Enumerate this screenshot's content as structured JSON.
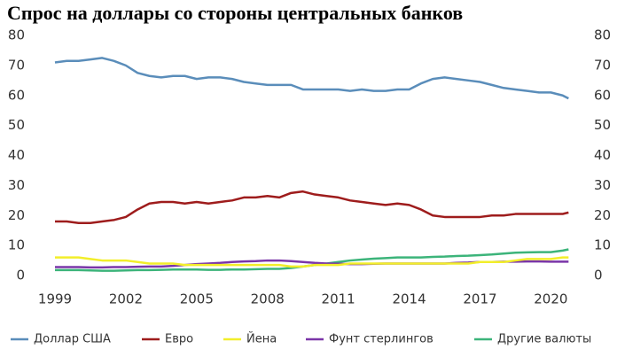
{
  "chart_data": {
    "type": "line",
    "title": "Спрос на доллары со стороны центральных банков",
    "x": [
      1999,
      1999.5,
      2000,
      2000.5,
      2001,
      2001.5,
      2002,
      2002.5,
      2003,
      2003.5,
      2004,
      2004.5,
      2005,
      2005.5,
      2006,
      2006.5,
      2007,
      2007.5,
      2008,
      2008.5,
      2009,
      2009.5,
      2010,
      2010.5,
      2011,
      2011.5,
      2012,
      2012.5,
      2013,
      2013.5,
      2014,
      2014.5,
      2015,
      2015.5,
      2016,
      2016.5,
      2017,
      2017.5,
      2018,
      2018.5,
      2019,
      2019.5,
      2020,
      2020.5,
      2020.75
    ],
    "series": [
      {
        "name": "Доллар США",
        "color": "#5a8dba",
        "values": [
          71,
          71.5,
          71.5,
          72,
          72.5,
          71.5,
          70,
          67.5,
          66.5,
          66,
          66.5,
          66.5,
          65.5,
          66,
          66,
          65.5,
          64.5,
          64,
          63.5,
          63.5,
          63.5,
          62,
          62,
          62,
          62,
          61.5,
          62,
          61.5,
          61.5,
          62,
          62,
          64,
          65.5,
          66,
          65.5,
          65,
          64.5,
          63.5,
          62.5,
          62,
          61.5,
          61,
          61,
          60,
          59
        ]
      },
      {
        "name": "Евро",
        "color": "#9e1c1c",
        "values": [
          18,
          18,
          17.5,
          17.5,
          18,
          18.5,
          19.5,
          22,
          24,
          24.5,
          24.5,
          24,
          24.5,
          24,
          24.5,
          25,
          26,
          26,
          26.5,
          26,
          27.5,
          28,
          27,
          26.5,
          26,
          25,
          24.5,
          24,
          23.5,
          24,
          23.5,
          22,
          20,
          19.5,
          19.5,
          19.5,
          19.5,
          20,
          20,
          20.5,
          20.5,
          20.5,
          20.5,
          20.5,
          21
        ]
      },
      {
        "name": "Йена",
        "color": "#f2ee2a",
        "values": [
          6,
          6,
          6,
          5.5,
          5,
          5,
          5,
          4.5,
          4,
          4,
          4,
          3.5,
          3.5,
          3.5,
          3.5,
          3.5,
          3.5,
          3.5,
          3.5,
          3.5,
          3,
          3,
          3.5,
          3.5,
          3.5,
          4,
          4,
          4,
          4,
          4,
          4,
          4,
          4,
          4,
          4,
          4,
          4.5,
          4.5,
          4.5,
          5,
          5.5,
          5.5,
          5.5,
          6,
          6
        ]
      },
      {
        "name": "Фунт стерлингов",
        "color": "#7a35a8",
        "values": [
          2.8,
          2.8,
          2.8,
          2.7,
          2.7,
          2.8,
          2.8,
          2.9,
          3,
          3,
          3.2,
          3.5,
          3.8,
          4,
          4.2,
          4.5,
          4.7,
          4.8,
          5,
          5,
          4.8,
          4.5,
          4.2,
          4,
          3.9,
          3.8,
          3.8,
          3.9,
          4,
          4,
          4,
          4,
          4,
          4,
          4.2,
          4.3,
          4.5,
          4.5,
          4.6,
          4.6,
          4.7,
          4.7,
          4.6,
          4.6,
          4.6
        ]
      },
      {
        "name": "Другие валюты",
        "color": "#3cb47a",
        "values": [
          1.8,
          1.8,
          1.8,
          1.7,
          1.6,
          1.6,
          1.7,
          1.8,
          1.8,
          1.9,
          2,
          2,
          2,
          1.9,
          1.9,
          2,
          2,
          2.1,
          2.2,
          2.2,
          2.5,
          3,
          3.5,
          4,
          4.5,
          5,
          5.3,
          5.6,
          5.8,
          6,
          6,
          6,
          6.2,
          6.3,
          6.5,
          6.6,
          6.8,
          7,
          7.3,
          7.6,
          7.7,
          7.8,
          7.8,
          8.3,
          8.7
        ]
      }
    ],
    "xlim": [
      1999,
      2021
    ],
    "xticks": [
      1999,
      2002,
      2005,
      2008,
      2011,
      2014,
      2017,
      2020
    ],
    "ylim": [
      0,
      80
    ],
    "yticks": [
      0,
      10,
      20,
      30,
      40,
      50,
      60,
      70,
      80
    ],
    "y2lim": [
      0,
      80
    ],
    "y2ticks": [
      0,
      10,
      20,
      30,
      40,
      50,
      60,
      70,
      80
    ],
    "legend": "bottom"
  }
}
